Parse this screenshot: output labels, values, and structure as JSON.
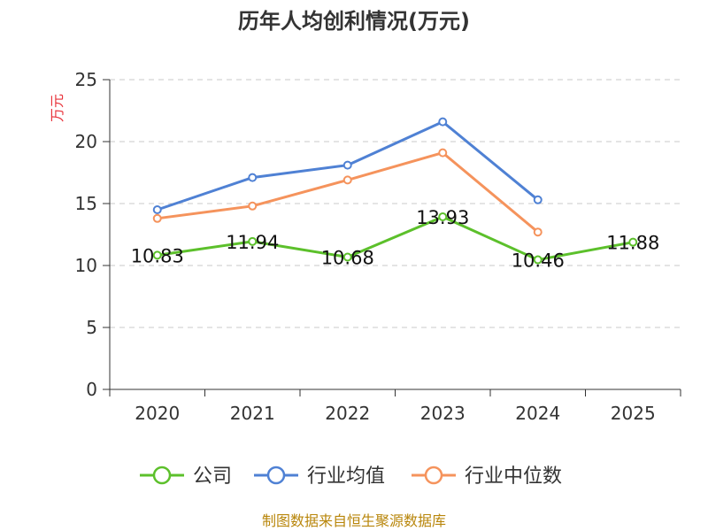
{
  "chart_data": {
    "type": "line",
    "title": "历年人均创利情况(万元)",
    "ylabel": "万元",
    "ylim": [
      0,
      25
    ],
    "yticks": [
      0,
      5,
      10,
      15,
      20,
      25
    ],
    "categories": [
      "2020",
      "2021",
      "2022",
      "2023",
      "2024",
      "2025"
    ],
    "grid": true,
    "legend_position": "bottom",
    "series": [
      {
        "name": "公司",
        "color": "#5cc02b",
        "values": [
          10.83,
          11.94,
          10.68,
          13.93,
          10.46,
          11.88
        ],
        "labels": [
          "10.83",
          "11.94",
          "10.68",
          "13.93",
          "10.46",
          "11.88"
        ]
      },
      {
        "name": "行业均值",
        "color": "#4f81d4",
        "values": [
          14.5,
          17.1,
          18.1,
          21.6,
          15.3,
          null
        ]
      },
      {
        "name": "行业中位数",
        "color": "#f5935c",
        "values": [
          13.8,
          14.8,
          16.9,
          19.1,
          12.7,
          null
        ]
      }
    ],
    "source": "制图数据来自恒生聚源数据库",
    "ylabel_color": "#e8333b",
    "source_color": "#b8860b"
  }
}
